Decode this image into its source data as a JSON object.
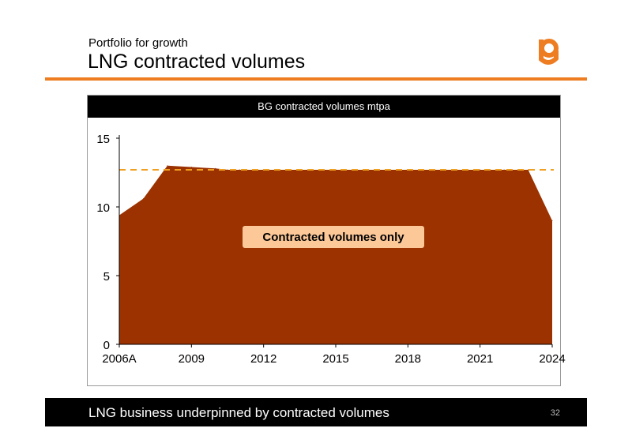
{
  "header": {
    "subtitle": "Portfolio for growth",
    "title": "LNG contracted volumes"
  },
  "colors": {
    "accent": "#ee7d22",
    "area_fill": "#9b3200",
    "reference_line": "#f0a020",
    "annotation_fill": "#fcc898"
  },
  "chart_data": {
    "type": "area",
    "title": "BG contracted volumes mtpa",
    "xlabel": "",
    "ylabel": "",
    "x": [
      2006,
      2007,
      2008,
      2009,
      2010,
      2010.5,
      2011,
      2012,
      2015,
      2018,
      2021,
      2022,
      2023,
      2024
    ],
    "x_ticks": [
      {
        "value": 2006,
        "label": "2006A"
      },
      {
        "value": 2009,
        "label": "2009"
      },
      {
        "value": 2012,
        "label": "2012"
      },
      {
        "value": 2015,
        "label": "2015"
      },
      {
        "value": 2018,
        "label": "2018"
      },
      {
        "value": 2021,
        "label": "2021"
      },
      {
        "value": 2024,
        "label": "2024"
      }
    ],
    "y_ticks": [
      0,
      5,
      10,
      15
    ],
    "xlim": [
      2006,
      2024
    ],
    "ylim": [
      0,
      15
    ],
    "series": [
      {
        "values": [
          9.4,
          10.6,
          13.0,
          12.9,
          12.8,
          12.7,
          12.7,
          12.7,
          12.7,
          12.7,
          12.7,
          12.7,
          12.7,
          9.0
        ]
      }
    ],
    "reference_line": {
      "value": 12.7,
      "style": "dashed"
    },
    "annotation": "Contracted volumes only",
    "grid": false
  },
  "footer": {
    "text": "LNG business underpinned by contracted volumes",
    "page_number": "32"
  }
}
